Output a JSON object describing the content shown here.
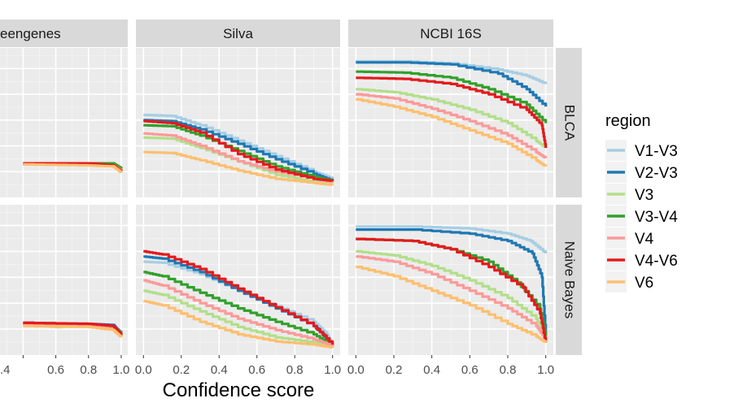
{
  "chart_data": {
    "type": "line",
    "xlabel": "Confidence score",
    "x_ticks": [
      "0.0",
      "0.2",
      "0.4",
      "0.6",
      "0.8",
      "1.0"
    ],
    "left_ticks_visible": [
      ".4",
      "0.6",
      "0.8",
      "1.0"
    ],
    "columns": [
      "eengenes",
      "Silva",
      "NCBI 16S"
    ],
    "rows": [
      "BLCA",
      "Naive Bayes"
    ],
    "legend_title": "region",
    "grid": true,
    "series": [
      {
        "name": "V1-V3",
        "color": "#a6cee3"
      },
      {
        "name": "V2-V3",
        "color": "#1f78b4"
      },
      {
        "name": "V3",
        "color": "#b2df8a"
      },
      {
        "name": "V3-V4",
        "color": "#33a02c"
      },
      {
        "name": "V4",
        "color": "#fb9a99"
      },
      {
        "name": "V4-V6",
        "color": "#e31a1c"
      },
      {
        "name": "V6",
        "color": "#fdbf6f"
      }
    ],
    "panels": [
      {
        "col": 0,
        "row": 0,
        "lines": {
          "V1-V3": [
            [
              0.4,
              0.33
            ],
            [
              0.8,
              0.33
            ],
            [
              0.95,
              0.32
            ],
            [
              1.0,
              0.27
            ]
          ],
          "V2-V3": [
            [
              0.4,
              0.32
            ],
            [
              0.8,
              0.32
            ],
            [
              0.95,
              0.32
            ],
            [
              1.0,
              0.26
            ]
          ],
          "V3": [
            [
              0.4,
              0.33
            ],
            [
              0.8,
              0.33
            ],
            [
              0.95,
              0.31
            ],
            [
              1.0,
              0.27
            ]
          ],
          "V3-V4": [
            [
              0.4,
              0.33
            ],
            [
              0.6,
              0.33
            ],
            [
              0.95,
              0.33
            ],
            [
              1.0,
              0.28
            ]
          ],
          "V4": [
            [
              0.4,
              0.32
            ],
            [
              0.8,
              0.32
            ],
            [
              0.95,
              0.31
            ],
            [
              1.0,
              0.26
            ]
          ],
          "V4-V6": [
            [
              0.4,
              0.33
            ],
            [
              0.8,
              0.33
            ],
            [
              0.95,
              0.31
            ],
            [
              1.0,
              0.25
            ]
          ],
          "V6": [
            [
              0.4,
              0.32
            ],
            [
              0.8,
              0.31
            ],
            [
              0.95,
              0.3
            ],
            [
              1.0,
              0.24
            ]
          ]
        }
      },
      {
        "col": 1,
        "row": 0,
        "lines": {
          "V1-V3": [
            [
              0,
              0.8
            ],
            [
              0.15,
              0.79
            ],
            [
              0.3,
              0.7
            ],
            [
              0.5,
              0.55
            ],
            [
              0.7,
              0.4
            ],
            [
              0.9,
              0.25
            ],
            [
              1.0,
              0.18
            ]
          ],
          "V2-V3": [
            [
              0,
              0.75
            ],
            [
              0.15,
              0.74
            ],
            [
              0.3,
              0.66
            ],
            [
              0.5,
              0.52
            ],
            [
              0.7,
              0.37
            ],
            [
              0.9,
              0.23
            ],
            [
              1.0,
              0.16
            ]
          ],
          "V3": [
            [
              0,
              0.58
            ],
            [
              0.15,
              0.57
            ],
            [
              0.3,
              0.48
            ],
            [
              0.5,
              0.35
            ],
            [
              0.7,
              0.22
            ],
            [
              0.9,
              0.15
            ],
            [
              1.0,
              0.14
            ]
          ],
          "V3-V4": [
            [
              0,
              0.7
            ],
            [
              0.15,
              0.69
            ],
            [
              0.3,
              0.6
            ],
            [
              0.5,
              0.45
            ],
            [
              0.7,
              0.3
            ],
            [
              0.9,
              0.2
            ],
            [
              1.0,
              0.16
            ]
          ],
          "V4": [
            [
              0,
              0.62
            ],
            [
              0.15,
              0.6
            ],
            [
              0.3,
              0.5
            ],
            [
              0.5,
              0.35
            ],
            [
              0.7,
              0.25
            ],
            [
              0.9,
              0.18
            ],
            [
              1.0,
              0.15
            ]
          ],
          "V4-V6": [
            [
              0,
              0.74
            ],
            [
              0.15,
              0.72
            ],
            [
              0.3,
              0.63
            ],
            [
              0.5,
              0.42
            ],
            [
              0.7,
              0.27
            ],
            [
              0.9,
              0.18
            ],
            [
              1.0,
              0.16
            ]
          ],
          "V6": [
            [
              0,
              0.44
            ],
            [
              0.15,
              0.43
            ],
            [
              0.3,
              0.36
            ],
            [
              0.5,
              0.26
            ],
            [
              0.7,
              0.18
            ],
            [
              0.9,
              0.14
            ],
            [
              1.0,
              0.12
            ]
          ]
        }
      },
      {
        "col": 2,
        "row": 0,
        "lines": {
          "V1-V3": [
            [
              0,
              1.32
            ],
            [
              0.25,
              1.32
            ],
            [
              0.5,
              1.3
            ],
            [
              0.75,
              1.24
            ],
            [
              0.9,
              1.18
            ],
            [
              1.0,
              1.1
            ]
          ],
          "V2-V3": [
            [
              0,
              1.31
            ],
            [
              0.25,
              1.31
            ],
            [
              0.5,
              1.29
            ],
            [
              0.75,
              1.2
            ],
            [
              0.9,
              1.05
            ],
            [
              1.0,
              0.88
            ]
          ],
          "V3": [
            [
              0,
              1.05
            ],
            [
              0.2,
              1.02
            ],
            [
              0.4,
              0.95
            ],
            [
              0.6,
              0.85
            ],
            [
              0.8,
              0.72
            ],
            [
              0.95,
              0.55
            ],
            [
              1.0,
              0.48
            ]
          ],
          "V3-V4": [
            [
              0,
              1.22
            ],
            [
              0.25,
              1.21
            ],
            [
              0.5,
              1.16
            ],
            [
              0.7,
              1.05
            ],
            [
              0.9,
              0.9
            ],
            [
              1.0,
              0.72
            ]
          ],
          "V4": [
            [
              0,
              1.0
            ],
            [
              0.2,
              0.96
            ],
            [
              0.4,
              0.86
            ],
            [
              0.6,
              0.74
            ],
            [
              0.8,
              0.6
            ],
            [
              0.95,
              0.44
            ],
            [
              1.0,
              0.38
            ]
          ],
          "V4-V6": [
            [
              0,
              1.16
            ],
            [
              0.25,
              1.15
            ],
            [
              0.5,
              1.1
            ],
            [
              0.7,
              1.0
            ],
            [
              0.9,
              0.85
            ],
            [
              0.98,
              0.7
            ],
            [
              1.0,
              0.48
            ]
          ],
          "V6": [
            [
              0,
              0.95
            ],
            [
              0.2,
              0.88
            ],
            [
              0.4,
              0.78
            ],
            [
              0.6,
              0.65
            ],
            [
              0.8,
              0.52
            ],
            [
              0.95,
              0.36
            ],
            [
              1.0,
              0.3
            ]
          ]
        }
      },
      {
        "col": 0,
        "row": 1,
        "lines": {
          "V1-V3": [
            [
              0.4,
              0.3
            ],
            [
              0.8,
              0.3
            ],
            [
              0.95,
              0.28
            ],
            [
              1.0,
              0.22
            ]
          ],
          "V2-V3": [
            [
              0.4,
              0.31
            ],
            [
              0.8,
              0.3
            ],
            [
              0.95,
              0.29
            ],
            [
              1.0,
              0.2
            ]
          ],
          "V3": [
            [
              0.4,
              0.29
            ],
            [
              0.6,
              0.27
            ],
            [
              0.8,
              0.28
            ],
            [
              0.95,
              0.25
            ],
            [
              1.0,
              0.21
            ]
          ],
          "V3-V4": [
            [
              0.4,
              0.3
            ],
            [
              0.8,
              0.29
            ],
            [
              0.95,
              0.27
            ],
            [
              1.0,
              0.21
            ]
          ],
          "V4": [
            [
              0.4,
              0.29
            ],
            [
              0.8,
              0.28
            ],
            [
              0.95,
              0.25
            ],
            [
              1.0,
              0.19
            ]
          ],
          "V4-V6": [
            [
              0.4,
              0.31
            ],
            [
              0.8,
              0.3
            ],
            [
              0.95,
              0.28
            ],
            [
              1.0,
              0.19
            ]
          ],
          "V6": [
            [
              0.4,
              0.28
            ],
            [
              0.8,
              0.27
            ],
            [
              0.95,
              0.24
            ],
            [
              1.0,
              0.17
            ]
          ]
        }
      },
      {
        "col": 1,
        "row": 1,
        "lines": {
          "V1-V3": [
            [
              0,
              0.9
            ],
            [
              0.1,
              0.89
            ],
            [
              0.3,
              0.78
            ],
            [
              0.5,
              0.62
            ],
            [
              0.7,
              0.47
            ],
            [
              0.9,
              0.32
            ],
            [
              0.97,
              0.2
            ],
            [
              1.0,
              0.1
            ]
          ],
          "V2-V3": [
            [
              0,
              0.95
            ],
            [
              0.1,
              0.93
            ],
            [
              0.3,
              0.8
            ],
            [
              0.5,
              0.62
            ],
            [
              0.7,
              0.45
            ],
            [
              0.9,
              0.28
            ],
            [
              0.97,
              0.16
            ],
            [
              1.0,
              0.08
            ]
          ],
          "V3": [
            [
              0,
              0.62
            ],
            [
              0.1,
              0.58
            ],
            [
              0.3,
              0.42
            ],
            [
              0.5,
              0.27
            ],
            [
              0.7,
              0.17
            ],
            [
              0.9,
              0.12
            ],
            [
              1.0,
              0.08
            ]
          ],
          "V3-V4": [
            [
              0,
              0.8
            ],
            [
              0.1,
              0.76
            ],
            [
              0.3,
              0.6
            ],
            [
              0.5,
              0.45
            ],
            [
              0.7,
              0.32
            ],
            [
              0.9,
              0.2
            ],
            [
              1.0,
              0.09
            ]
          ],
          "V4": [
            [
              0,
              0.72
            ],
            [
              0.1,
              0.67
            ],
            [
              0.3,
              0.5
            ],
            [
              0.5,
              0.35
            ],
            [
              0.7,
              0.24
            ],
            [
              0.9,
              0.15
            ],
            [
              1.0,
              0.09
            ]
          ],
          "V4-V6": [
            [
              0,
              1.0
            ],
            [
              0.1,
              0.97
            ],
            [
              0.3,
              0.83
            ],
            [
              0.5,
              0.64
            ],
            [
              0.7,
              0.46
            ],
            [
              0.9,
              0.28
            ],
            [
              1.0,
              0.1
            ]
          ],
          "V6": [
            [
              0,
              0.52
            ],
            [
              0.1,
              0.48
            ],
            [
              0.3,
              0.32
            ],
            [
              0.5,
              0.2
            ],
            [
              0.7,
              0.13
            ],
            [
              0.9,
              0.1
            ],
            [
              1.0,
              0.07
            ]
          ]
        }
      },
      {
        "col": 2,
        "row": 1,
        "lines": {
          "V1-V3": [
            [
              0,
              1.24
            ],
            [
              0.3,
              1.24
            ],
            [
              0.6,
              1.22
            ],
            [
              0.8,
              1.17
            ],
            [
              0.92,
              1.1
            ],
            [
              1.0,
              0.98
            ]
          ],
          "V2-V3": [
            [
              0,
              1.21
            ],
            [
              0.3,
              1.21
            ],
            [
              0.6,
              1.17
            ],
            [
              0.8,
              1.1
            ],
            [
              0.93,
              0.98
            ],
            [
              0.98,
              0.75
            ],
            [
              1.0,
              0.2
            ]
          ],
          "V3": [
            [
              0,
              1.0
            ],
            [
              0.2,
              0.96
            ],
            [
              0.4,
              0.86
            ],
            [
              0.6,
              0.72
            ],
            [
              0.8,
              0.55
            ],
            [
              0.95,
              0.35
            ],
            [
              1.0,
              0.18
            ]
          ],
          "V3-V4": [
            [
              0,
              1.12
            ],
            [
              0.3,
              1.1
            ],
            [
              0.5,
              1.02
            ],
            [
              0.7,
              0.9
            ],
            [
              0.85,
              0.7
            ],
            [
              0.97,
              0.45
            ],
            [
              1.0,
              0.18
            ]
          ],
          "V4": [
            [
              0,
              0.95
            ],
            [
              0.2,
              0.9
            ],
            [
              0.4,
              0.78
            ],
            [
              0.6,
              0.62
            ],
            [
              0.8,
              0.45
            ],
            [
              0.95,
              0.28
            ],
            [
              1.0,
              0.15
            ]
          ],
          "V4-V6": [
            [
              0,
              1.12
            ],
            [
              0.3,
              1.1
            ],
            [
              0.5,
              1.02
            ],
            [
              0.7,
              0.85
            ],
            [
              0.88,
              0.65
            ],
            [
              0.97,
              0.4
            ],
            [
              1.0,
              0.12
            ]
          ],
          "V6": [
            [
              0,
              0.85
            ],
            [
              0.2,
              0.76
            ],
            [
              0.4,
              0.62
            ],
            [
              0.6,
              0.48
            ],
            [
              0.8,
              0.3
            ],
            [
              0.95,
              0.18
            ],
            [
              1.0,
              0.12
            ]
          ]
        }
      }
    ]
  }
}
